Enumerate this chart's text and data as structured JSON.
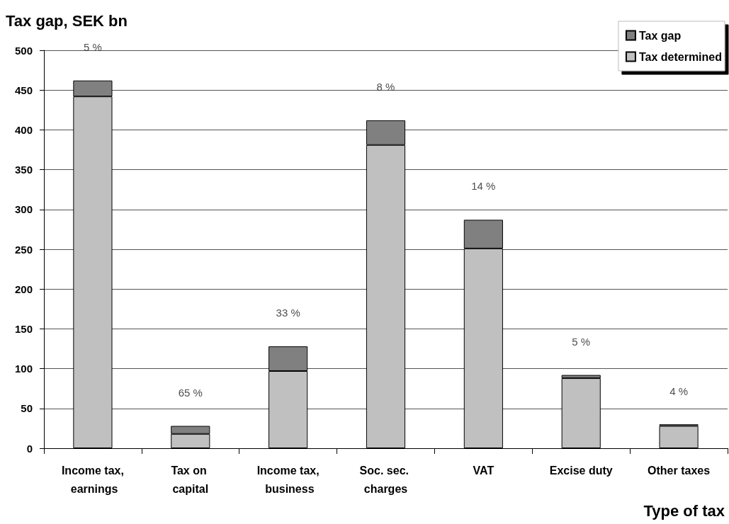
{
  "chart_data": {
    "type": "bar",
    "stacked": true,
    "ylabel": "Tax gap, SEK bn",
    "xlabel": "Type of tax",
    "categories": [
      "Income tax, earnings",
      "Tax on capital",
      "Income tax, business",
      "Soc. sec. charges",
      "VAT",
      "Excise duty",
      "Other taxes"
    ],
    "series": [
      {
        "name": "Tax determined",
        "color": "#c0c0c0",
        "values": [
          442,
          18,
          97,
          381,
          251,
          88,
          28
        ]
      },
      {
        "name": "Tax gap",
        "color": "#808080",
        "values": [
          20,
          10,
          31,
          31,
          36,
          4,
          2
        ]
      }
    ],
    "ylim": [
      0,
      500
    ],
    "yticks": [
      0,
      50,
      100,
      150,
      200,
      250,
      300,
      350,
      400,
      450,
      500
    ],
    "grid": "y",
    "legend": "top right",
    "annotations": [
      {
        "text": "5 %",
        "x": "Income tax, earnings",
        "y": 462
      },
      {
        "text": "65 %",
        "x": "Tax on capital",
        "y": 28
      },
      {
        "text": "33 %",
        "x": "Income tax, business",
        "y": 128
      },
      {
        "text": "8 %",
        "x": "Soc. sec. charges",
        "y": 412
      },
      {
        "text": "14 %",
        "x": "VAT",
        "y": 287
      },
      {
        "text": "5 %",
        "x": "Excise duty",
        "y": 92
      },
      {
        "text": "4 %",
        "x": "Other taxes",
        "y": 29.5
      }
    ]
  }
}
